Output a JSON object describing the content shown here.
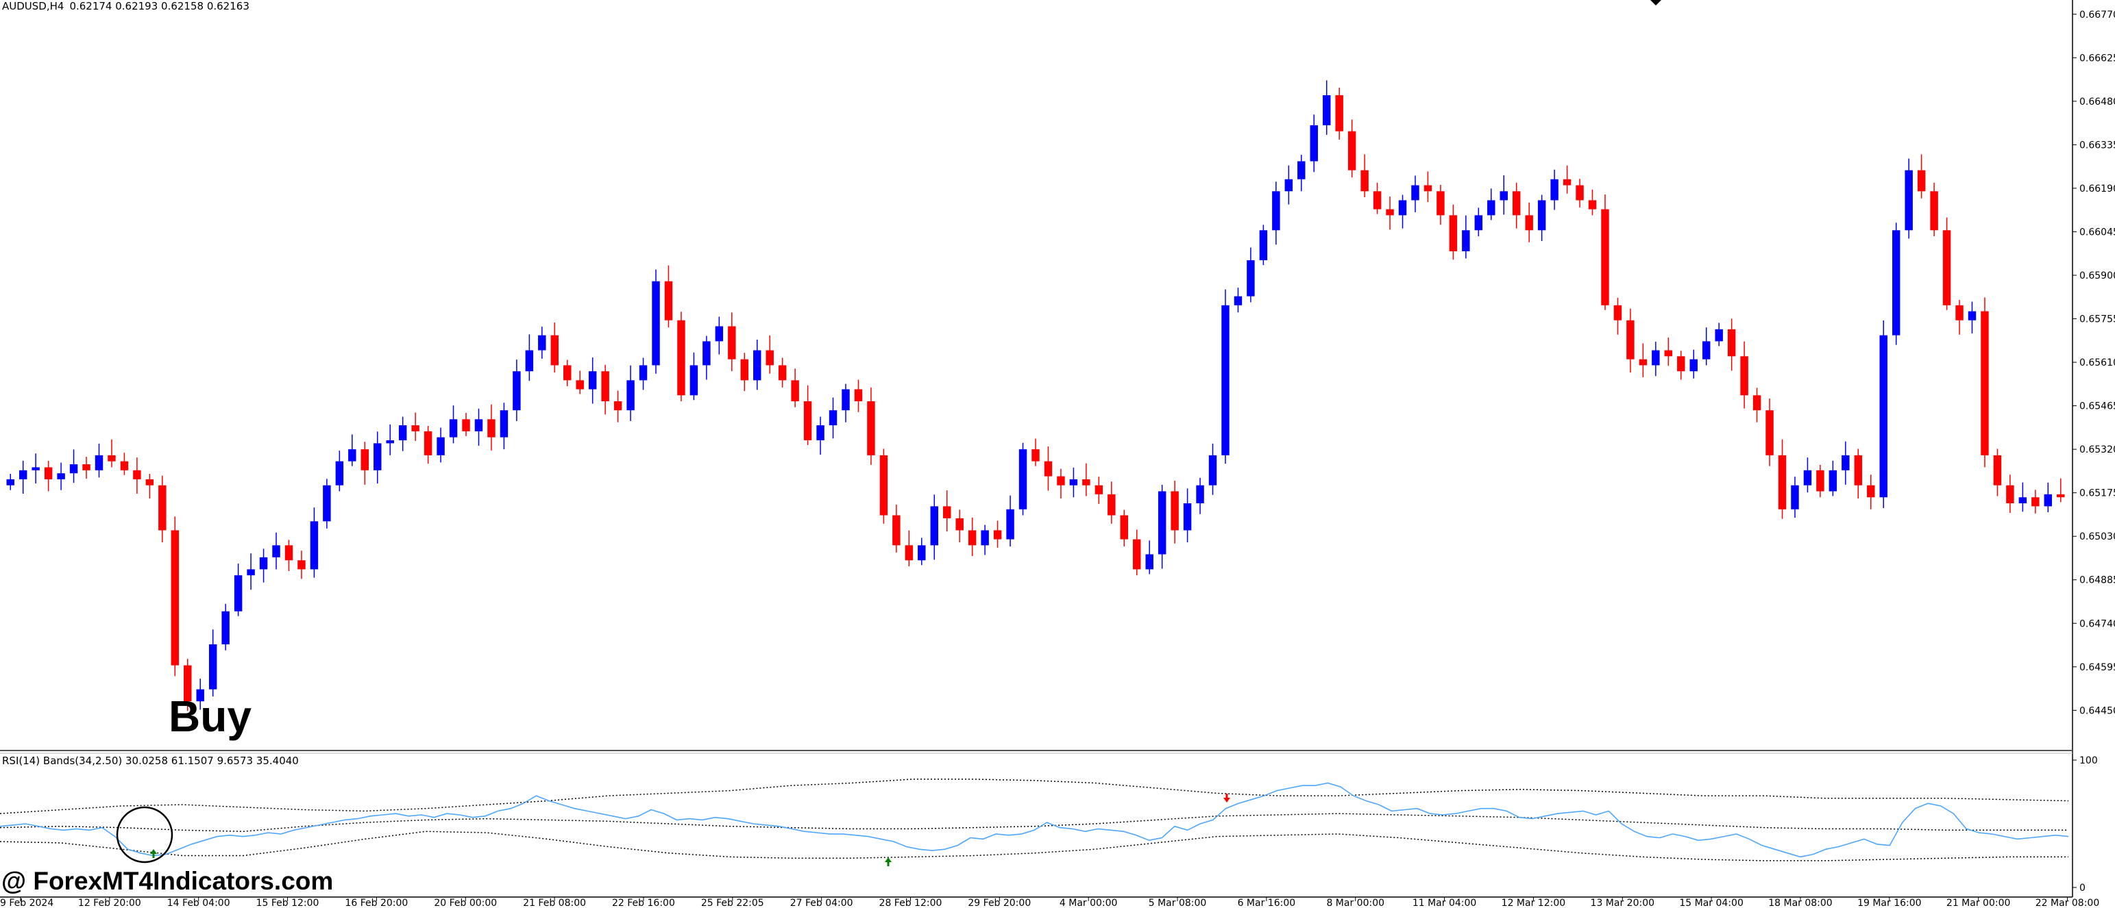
{
  "header": {
    "symbol": "AUDUSD,H4",
    "ohlc": "0.62174 0.62193 0.62158 0.62163"
  },
  "indicator": {
    "label": "RSI(14) Bands(34,2.50) 30.0258 61.1507 9.6573 35.4040"
  },
  "annotations": {
    "buy_text": "Buy",
    "watermark": "@ ForexMT4Indicators.com"
  },
  "colors": {
    "bull": "#0000ff",
    "bear": "#ff0000",
    "rsi_line": "#4da6ff",
    "bands": "#000000",
    "buy_arrow": "#008000",
    "sell_arrow": "#ff0000"
  },
  "chart_data": [
    {
      "type": "candlestick",
      "ylim": [
        0.6438,
        0.6679
      ],
      "y_ticks": [
        "0.66770",
        "0.66625",
        "0.66480",
        "0.66335",
        "0.66190",
        "0.66045",
        "0.65900",
        "0.65755",
        "0.65610",
        "0.65465",
        "0.65320",
        "0.65175",
        "0.65030",
        "0.64885",
        "0.64740",
        "0.64595",
        "0.64450"
      ],
      "x_ticks": [
        "9 Feb 2024",
        "12 Feb 20:00",
        "14 Feb 04:00",
        "15 Feb 12:00",
        "16 Feb 20:00",
        "20 Feb 00:00",
        "21 Feb 08:00",
        "22 Feb 16:00",
        "25 Feb 22:05",
        "27 Feb 04:00",
        "28 Feb 12:00",
        "29 Feb 20:00",
        "4 Mar 00:00",
        "5 Mar 08:00",
        "6 Mar 16:00",
        "8 Mar 00:00",
        "11 Mar 04:00",
        "12 Mar 12:00",
        "13 Mar 20:00",
        "15 Mar 04:00",
        "18 Mar 08:00",
        "19 Mar 16:00",
        "21 Mar 00:00",
        "22 Mar 08:00"
      ],
      "close_series": [
        0.6522,
        0.6525,
        0.6526,
        0.6522,
        0.6524,
        0.6527,
        0.6525,
        0.653,
        0.6528,
        0.6525,
        0.6522,
        0.652,
        0.6505,
        0.646,
        0.6448,
        0.6452,
        0.6467,
        0.6478,
        0.649,
        0.6492,
        0.6496,
        0.65,
        0.6495,
        0.6492,
        0.6508,
        0.652,
        0.6528,
        0.6532,
        0.6525,
        0.6534,
        0.6535,
        0.654,
        0.6538,
        0.653,
        0.6536,
        0.6542,
        0.6538,
        0.6542,
        0.6536,
        0.6545,
        0.6558,
        0.6565,
        0.657,
        0.656,
        0.6555,
        0.6552,
        0.6558,
        0.6548,
        0.6545,
        0.6555,
        0.656,
        0.6588,
        0.6575,
        0.655,
        0.656,
        0.6568,
        0.6573,
        0.6562,
        0.6555,
        0.6565,
        0.656,
        0.6555,
        0.6548,
        0.6535,
        0.654,
        0.6545,
        0.6552,
        0.6548,
        0.653,
        0.651,
        0.65,
        0.6495,
        0.65,
        0.6513,
        0.6509,
        0.6505,
        0.65,
        0.6505,
        0.6502,
        0.6512,
        0.6532,
        0.6528,
        0.6523,
        0.652,
        0.6522,
        0.652,
        0.6517,
        0.651,
        0.6502,
        0.6492,
        0.6497,
        0.6518,
        0.6505,
        0.6514,
        0.652,
        0.653,
        0.658,
        0.6583,
        0.6595,
        0.6605,
        0.6618,
        0.6622,
        0.6628,
        0.664,
        0.665,
        0.6638,
        0.6625,
        0.6618,
        0.6612,
        0.661,
        0.6615,
        0.662,
        0.6618,
        0.661,
        0.6598,
        0.6605,
        0.661,
        0.6615,
        0.6618,
        0.661,
        0.6605,
        0.6615,
        0.6622,
        0.662,
        0.6615,
        0.6612,
        0.658,
        0.6575,
        0.6562,
        0.656,
        0.6565,
        0.6563,
        0.6558,
        0.6562,
        0.6568,
        0.6572,
        0.6563,
        0.655,
        0.6545,
        0.653,
        0.6512,
        0.652,
        0.6525,
        0.6518,
        0.6525,
        0.653,
        0.652,
        0.6516,
        0.657,
        0.6605,
        0.6625,
        0.6618,
        0.6605,
        0.658,
        0.6575,
        0.6578,
        0.653,
        0.652,
        0.6514,
        0.6516,
        0.6513,
        0.6517,
        0.6516
      ]
    },
    {
      "type": "line",
      "title": "RSI(14) Bands(34,2.50)",
      "ylim": [
        0,
        100
      ],
      "y_ticks": [
        "100",
        "0"
      ],
      "series": [
        {
          "name": "RSI(14)",
          "values": [
            48,
            49,
            50,
            48,
            46,
            45,
            46,
            45,
            47,
            40,
            30,
            27,
            25,
            26,
            30,
            34,
            37,
            40,
            41,
            40,
            41,
            43,
            42,
            45,
            47,
            49,
            51,
            53,
            54,
            56,
            57,
            58,
            56,
            57,
            55,
            58,
            57,
            55,
            56,
            60,
            62,
            66,
            72,
            68,
            65,
            62,
            60,
            58,
            56,
            54,
            56,
            61,
            58,
            53,
            54,
            53,
            55,
            54,
            52,
            50,
            49,
            48,
            46,
            44,
            43,
            42,
            42,
            41,
            40,
            38,
            36,
            32,
            30,
            29,
            30,
            33,
            39,
            38,
            42,
            41,
            42,
            45,
            51,
            47,
            46,
            44,
            46,
            45,
            44,
            41,
            37,
            39,
            48,
            45,
            50,
            53,
            62,
            66,
            69,
            72,
            76,
            78,
            80,
            80,
            82,
            79,
            72,
            68,
            65,
            60,
            61,
            62,
            58,
            57,
            58,
            60,
            62,
            62,
            60,
            55,
            54,
            56,
            58,
            59,
            60,
            57,
            60,
            50,
            44,
            40,
            39,
            42,
            40,
            37,
            38,
            40,
            42,
            38,
            33,
            30,
            27,
            24,
            26,
            30,
            32,
            35,
            38,
            34,
            33,
            51,
            62,
            66,
            64,
            58,
            46,
            43,
            42,
            40,
            38,
            39,
            40,
            41,
            40
          ]
        },
        {
          "name": "Upper band",
          "values": [
            58,
            61,
            64,
            65,
            63,
            61,
            60,
            62,
            65,
            68,
            72,
            74,
            76,
            80,
            82,
            85,
            85,
            84,
            82,
            78,
            74,
            72,
            72,
            74,
            76,
            77,
            76,
            74,
            72,
            72,
            70,
            70,
            70,
            69,
            68
          ]
        },
        {
          "name": "Middle band",
          "values": [
            47,
            48,
            47,
            45,
            44,
            48,
            51,
            53,
            54,
            53,
            52,
            50,
            48,
            47,
            46,
            46,
            47,
            48,
            50,
            53,
            56,
            57,
            58,
            57,
            56,
            55,
            53,
            51,
            49,
            47,
            46,
            46,
            45,
            45,
            45
          ]
        },
        {
          "name": "Lower band",
          "values": [
            36,
            35,
            30,
            25,
            25,
            31,
            38,
            44,
            43,
            38,
            32,
            27,
            24,
            23,
            23,
            24,
            25,
            27,
            30,
            35,
            40,
            41,
            42,
            39,
            35,
            31,
            27,
            24,
            22,
            21,
            21,
            22,
            23,
            24,
            24
          ]
        }
      ]
    }
  ]
}
